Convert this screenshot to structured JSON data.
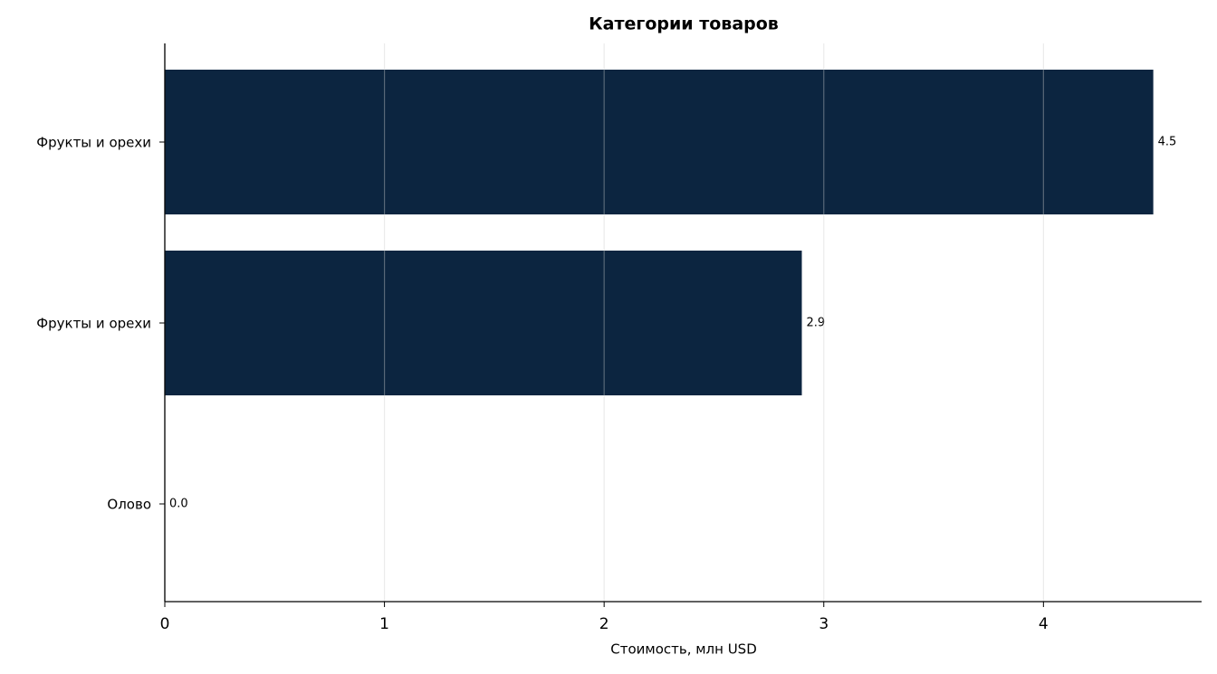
{
  "chart_data": {
    "type": "hbar",
    "title": "Категории товаров",
    "x_label": "Стоимость, млн USD",
    "categories": [
      "Фрукты и орехи",
      "Фрукты и орехи",
      "Олово"
    ],
    "values": [
      4.5,
      2.9,
      0.0
    ],
    "value_labels": [
      "4.5",
      "2.9",
      "0.0"
    ],
    "color": "#0c2540",
    "xlim": [
      0,
      4.72
    ],
    "xticks": [
      0,
      1,
      2,
      3,
      4
    ],
    "grid": true
  }
}
